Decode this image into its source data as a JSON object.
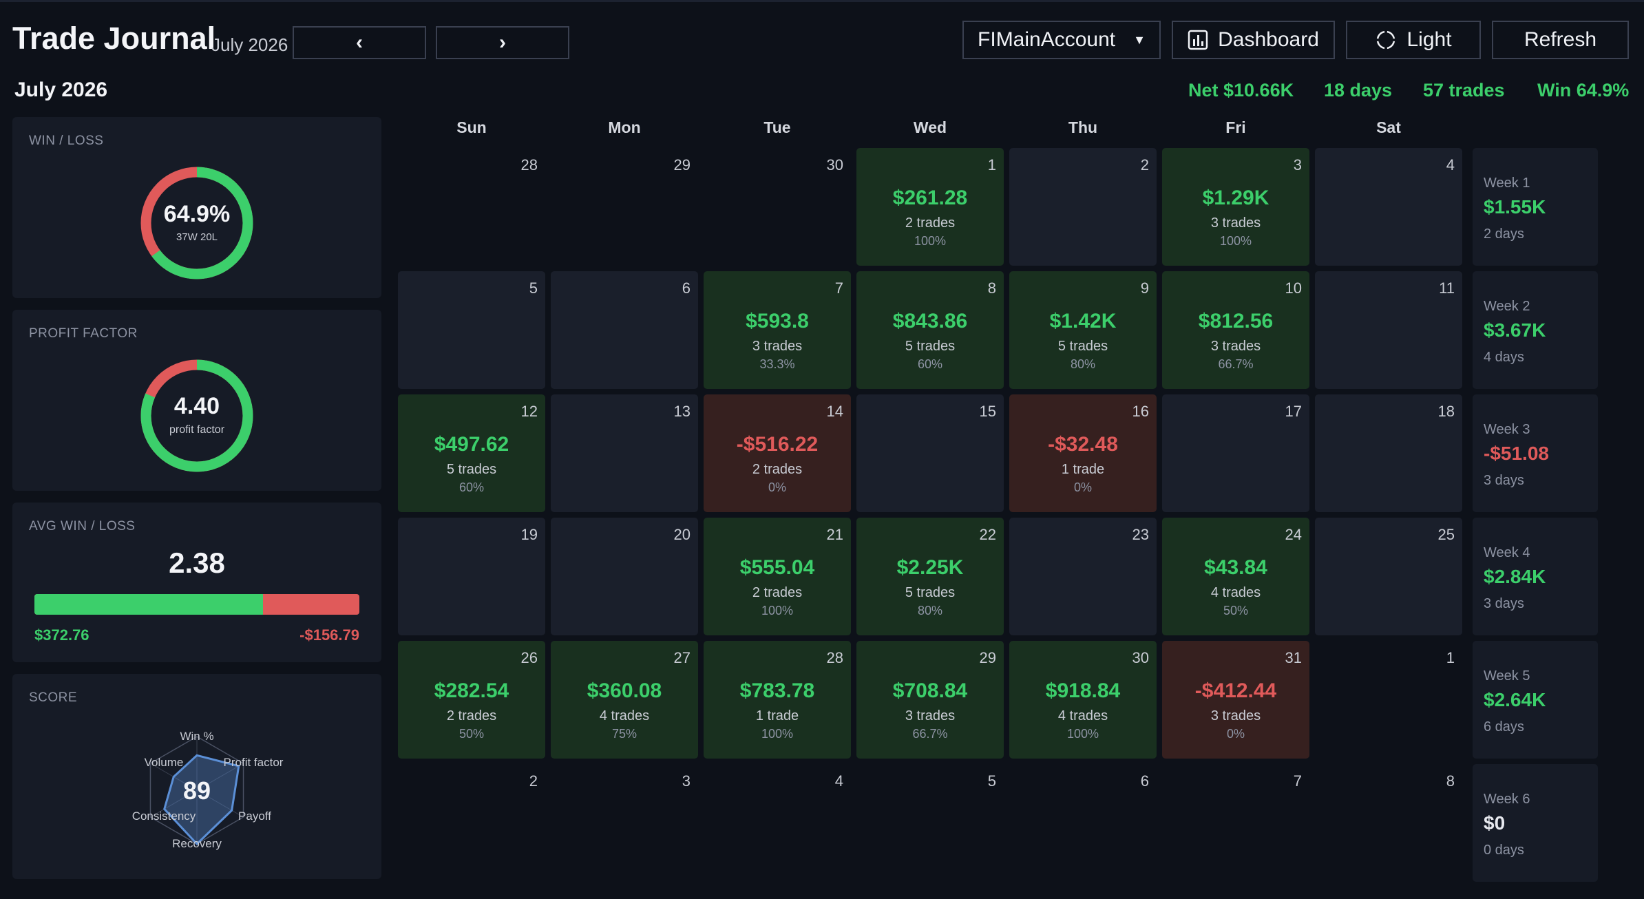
{
  "header": {
    "title": "Trade Journal",
    "month": "July 2026",
    "prev_label": "‹",
    "next_label": "›",
    "account": "FIMainAccount",
    "account_caret": "▼",
    "dashboard_label": "Dashboard",
    "theme_label": "Light",
    "refresh_label": "Refresh"
  },
  "month_title": "July 2026",
  "summary": {
    "net": "Net $10.66K",
    "days": "18 days",
    "trades": "57 trades",
    "win": "Win 64.9%"
  },
  "colors": {
    "win": "#3ccf6b",
    "loss": "#e05a5a",
    "radar": "#5b8fd6"
  },
  "panels": {
    "winloss": {
      "label": "WIN / LOSS",
      "value": "64.9%",
      "sub": "37W 20L",
      "win_fraction": 0.649
    },
    "profit_factor": {
      "label": "PROFIT FACTOR",
      "value": "4.40",
      "sub": "profit factor",
      "win_fraction": 0.815
    },
    "avg": {
      "label": "AVG WIN / LOSS",
      "value": "2.38",
      "win": "$372.76",
      "loss": "-$156.79",
      "win_fraction": 0.704
    },
    "score": {
      "label": "SCORE",
      "value": "89",
      "axes": [
        "Win %",
        "Profit factor",
        "Payoff",
        "Recovery",
        "Consistency",
        "Volume"
      ],
      "levels": [
        0.65,
        0.9,
        0.75,
        1.0,
        0.7,
        0.5
      ]
    }
  },
  "weekdays": [
    "Sun",
    "Mon",
    "Tue",
    "Wed",
    "Thu",
    "Fri",
    "Sat"
  ],
  "weeks": [
    {
      "days": [
        {
          "day": "28",
          "status": "out"
        },
        {
          "day": "29",
          "status": "out"
        },
        {
          "day": "30",
          "status": "out"
        },
        {
          "day": "1",
          "status": "win",
          "pnl": "$261.28",
          "trades": "2 trades",
          "winrate": "100%"
        },
        {
          "day": "2",
          "status": "empty"
        },
        {
          "day": "3",
          "status": "win",
          "pnl": "$1.29K",
          "trades": "3 trades",
          "winrate": "100%"
        },
        {
          "day": "4",
          "status": "empty"
        }
      ],
      "summary": {
        "label": "Week 1",
        "pnl": "$1.55K",
        "days": "2 days",
        "sign": "pos"
      }
    },
    {
      "days": [
        {
          "day": "5",
          "status": "empty"
        },
        {
          "day": "6",
          "status": "empty"
        },
        {
          "day": "7",
          "status": "win",
          "pnl": "$593.8",
          "trades": "3 trades",
          "winrate": "33.3%"
        },
        {
          "day": "8",
          "status": "win",
          "pnl": "$843.86",
          "trades": "5 trades",
          "winrate": "60%"
        },
        {
          "day": "9",
          "status": "win",
          "pnl": "$1.42K",
          "trades": "5 trades",
          "winrate": "80%"
        },
        {
          "day": "10",
          "status": "win",
          "pnl": "$812.56",
          "trades": "3 trades",
          "winrate": "66.7%"
        },
        {
          "day": "11",
          "status": "empty"
        }
      ],
      "summary": {
        "label": "Week 2",
        "pnl": "$3.67K",
        "days": "4 days",
        "sign": "pos"
      }
    },
    {
      "days": [
        {
          "day": "12",
          "status": "win",
          "pnl": "$497.62",
          "trades": "5 trades",
          "winrate": "60%"
        },
        {
          "day": "13",
          "status": "empty"
        },
        {
          "day": "14",
          "status": "loss",
          "pnl": "-$516.22",
          "trades": "2 trades",
          "winrate": "0%"
        },
        {
          "day": "15",
          "status": "empty"
        },
        {
          "day": "16",
          "status": "loss",
          "pnl": "-$32.48",
          "trades": "1 trade",
          "winrate": "0%"
        },
        {
          "day": "17",
          "status": "empty"
        },
        {
          "day": "18",
          "status": "empty"
        }
      ],
      "summary": {
        "label": "Week 3",
        "pnl": "-$51.08",
        "days": "3 days",
        "sign": "neg"
      }
    },
    {
      "days": [
        {
          "day": "19",
          "status": "empty"
        },
        {
          "day": "20",
          "status": "empty"
        },
        {
          "day": "21",
          "status": "win",
          "pnl": "$555.04",
          "trades": "2 trades",
          "winrate": "100%"
        },
        {
          "day": "22",
          "status": "win",
          "pnl": "$2.25K",
          "trades": "5 trades",
          "winrate": "80%"
        },
        {
          "day": "23",
          "status": "empty"
        },
        {
          "day": "24",
          "status": "win",
          "pnl": "$43.84",
          "trades": "4 trades",
          "winrate": "50%"
        },
        {
          "day": "25",
          "status": "empty"
        }
      ],
      "summary": {
        "label": "Week 4",
        "pnl": "$2.84K",
        "days": "3 days",
        "sign": "pos"
      }
    },
    {
      "days": [
        {
          "day": "26",
          "status": "win",
          "pnl": "$282.54",
          "trades": "2 trades",
          "winrate": "50%"
        },
        {
          "day": "27",
          "status": "win",
          "pnl": "$360.08",
          "trades": "4 trades",
          "winrate": "75%"
        },
        {
          "day": "28",
          "status": "win",
          "pnl": "$783.78",
          "trades": "1 trade",
          "winrate": "100%"
        },
        {
          "day": "29",
          "status": "win",
          "pnl": "$708.84",
          "trades": "3 trades",
          "winrate": "66.7%"
        },
        {
          "day": "30",
          "status": "win",
          "pnl": "$918.84",
          "trades": "4 trades",
          "winrate": "100%"
        },
        {
          "day": "31",
          "status": "loss",
          "pnl": "-$412.44",
          "trades": "3 trades",
          "winrate": "0%"
        },
        {
          "day": "1",
          "status": "out"
        }
      ],
      "summary": {
        "label": "Week 5",
        "pnl": "$2.64K",
        "days": "6 days",
        "sign": "pos"
      }
    },
    {
      "days": [
        {
          "day": "2",
          "status": "out"
        },
        {
          "day": "3",
          "status": "out"
        },
        {
          "day": "4",
          "status": "out"
        },
        {
          "day": "5",
          "status": "out"
        },
        {
          "day": "6",
          "status": "out"
        },
        {
          "day": "7",
          "status": "out"
        },
        {
          "day": "8",
          "status": "out"
        }
      ],
      "summary": {
        "label": "Week 6",
        "pnl": "$0",
        "days": "0 days",
        "sign": "zero"
      }
    }
  ]
}
